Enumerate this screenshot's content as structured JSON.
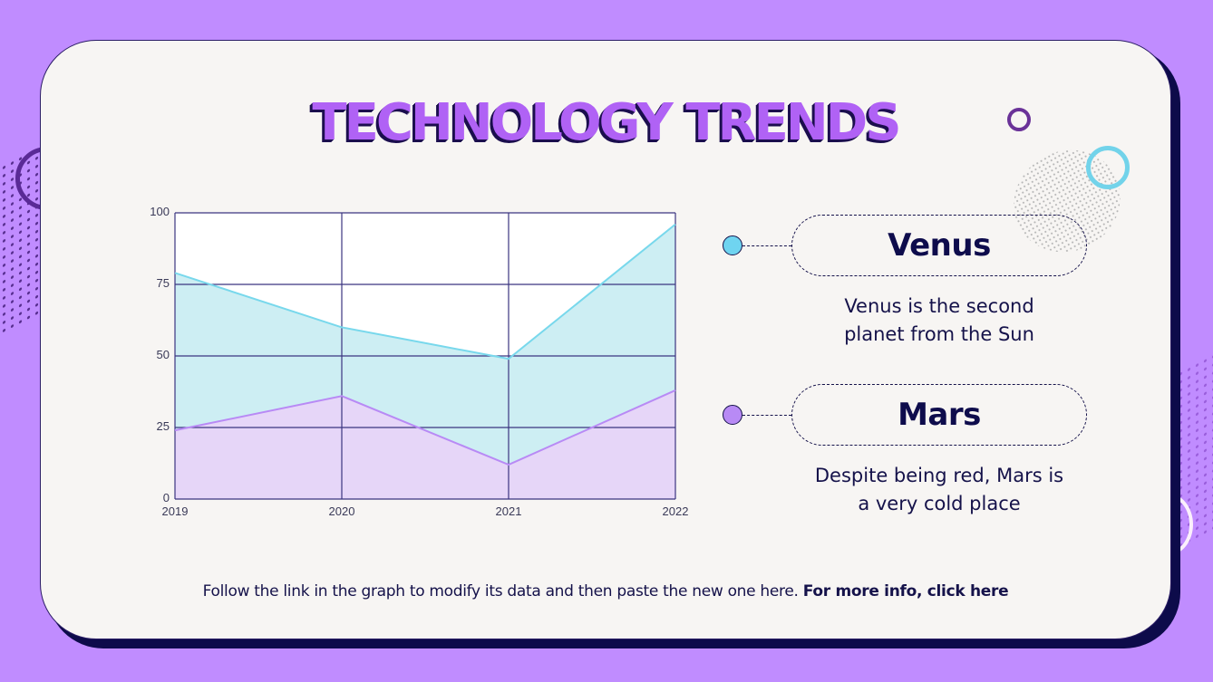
{
  "slide": {
    "title": "TECHNOLOGY TRENDS",
    "footer_text": "Follow the link in the graph to modify its data and then paste the new one here.",
    "footer_link": "For more info, click here"
  },
  "legend": [
    {
      "name": "Venus",
      "description_line1": "Venus is the second",
      "description_line2": "planet from the Sun",
      "color": "#6fd4f0"
    },
    {
      "name": "Mars",
      "description_line1": "Despite being red, Mars is",
      "description_line2": "a very cold place",
      "color": "#b88af5"
    }
  ],
  "colors": {
    "background": "#c08cff",
    "card": "#f7f5f3",
    "navy": "#15124a",
    "title_purple": "#b062f5",
    "venus_line": "#78d8ec",
    "venus_fill": "#cdeef3",
    "mars_line": "#b88af5",
    "mars_fill": "#e6d6f8"
  },
  "chart_data": {
    "type": "area",
    "title": "",
    "xlabel": "",
    "ylabel": "",
    "categories": [
      "2019",
      "2020",
      "2021",
      "2022"
    ],
    "series": [
      {
        "name": "Venus",
        "values": [
          79,
          60,
          49,
          96
        ]
      },
      {
        "name": "Mars",
        "values": [
          24,
          36,
          12,
          38
        ]
      }
    ],
    "ylim": [
      0,
      100
    ],
    "yticks": [
      "0",
      "25",
      "50",
      "75",
      "100"
    ],
    "grid": true,
    "legend_position": "right (custom labels)"
  }
}
